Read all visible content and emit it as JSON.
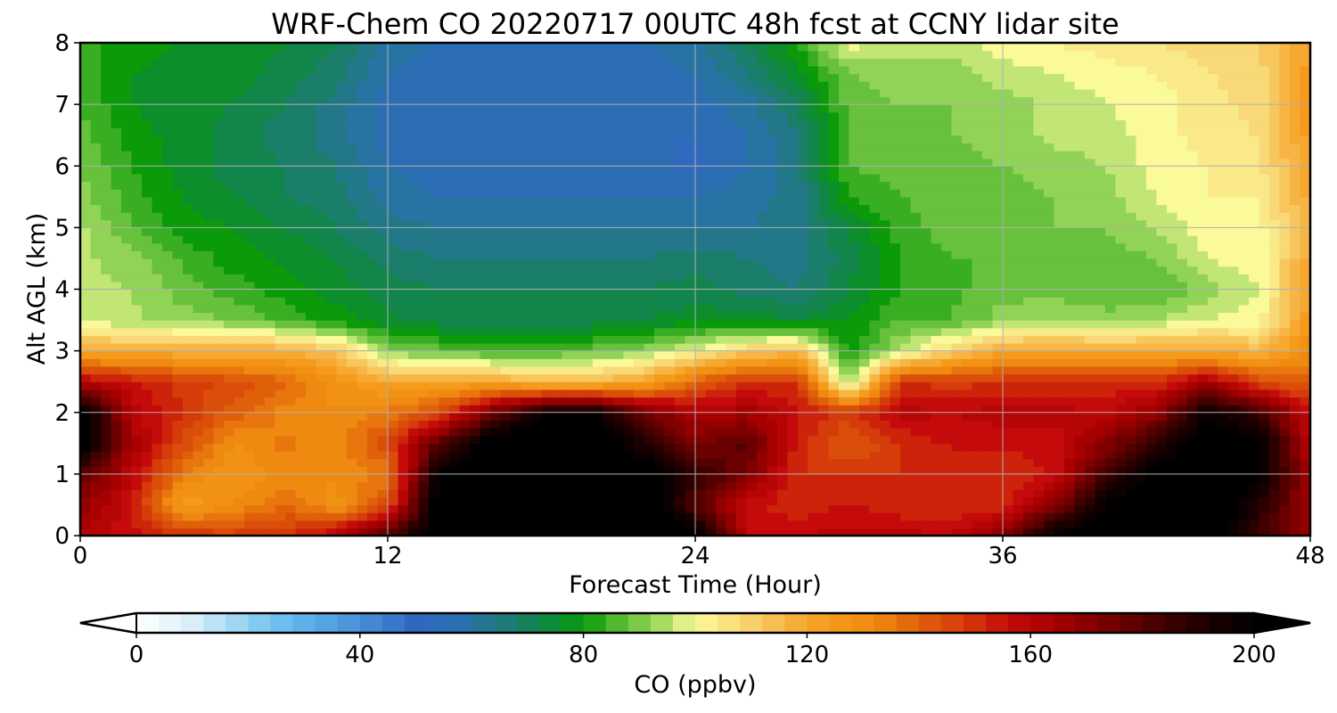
{
  "chart_data": {
    "type": "heatmap",
    "title": "WRF-Chem CO  20220717 00UTC 48h fcst at CCNY lidar site",
    "xlabel": "Forecast Time (Hour)",
    "ylabel": "Alt AGL (km)",
    "xlim": [
      0,
      48
    ],
    "ylim": [
      0,
      8
    ],
    "x_ticks": [
      "0",
      "12",
      "24",
      "36",
      "48"
    ],
    "y_ticks": [
      "0",
      "1",
      "2",
      "3",
      "4",
      "5",
      "6",
      "7",
      "8"
    ],
    "grid": true,
    "x": [
      0,
      2,
      4,
      6,
      8,
      10,
      12,
      14,
      16,
      18,
      20,
      22,
      24,
      26,
      28,
      30,
      32,
      34,
      36,
      38,
      40,
      42,
      44,
      46,
      48
    ],
    "y": [
      0,
      0.5,
      1,
      1.5,
      2,
      2.5,
      3,
      3.5,
      4,
      4.5,
      5,
      5.5,
      6,
      6.5,
      7,
      7.5,
      8
    ],
    "values": [
      [
        162,
        155,
        150,
        148,
        150,
        160,
        182,
        205,
        208,
        210,
        210,
        206,
        204,
        158,
        158,
        160,
        160,
        158,
        170,
        200,
        205,
        206,
        208,
        185,
        168
      ],
      [
        168,
        155,
        122,
        130,
        138,
        128,
        145,
        205,
        210,
        212,
        212,
        208,
        180,
        156,
        150,
        155,
        150,
        150,
        152,
        170,
        200,
        206,
        210,
        190,
        165
      ],
      [
        180,
        158,
        135,
        125,
        132,
        130,
        135,
        200,
        208,
        212,
        212,
        206,
        188,
        172,
        150,
        150,
        150,
        150,
        150,
        155,
        185,
        202,
        206,
        200,
        165
      ],
      [
        205,
        165,
        145,
        130,
        135,
        132,
        145,
        180,
        205,
        210,
        210,
        190,
        172,
        180,
        152,
        140,
        150,
        155,
        155,
        155,
        170,
        190,
        205,
        200,
        160
      ],
      [
        205,
        160,
        150,
        140,
        132,
        130,
        135,
        145,
        175,
        198,
        200,
        175,
        162,
        165,
        155,
        148,
        160,
        158,
        160,
        160,
        158,
        168,
        198,
        185,
        155
      ],
      [
        160,
        155,
        148,
        145,
        140,
        128,
        120,
        122,
        120,
        115,
        115,
        120,
        140,
        150,
        150,
        90,
        150,
        148,
        150,
        150,
        150,
        150,
        165,
        145,
        140
      ],
      [
        120,
        118,
        118,
        118,
        118,
        112,
        92,
        88,
        85,
        85,
        88,
        92,
        100,
        110,
        115,
        80,
        95,
        110,
        120,
        120,
        120,
        120,
        120,
        115,
        130
      ],
      [
        95,
        95,
        92,
        90,
        85,
        80,
        75,
        72,
        72,
        72,
        72,
        74,
        76,
        76,
        74,
        78,
        86,
        86,
        92,
        95,
        92,
        94,
        98,
        100,
        125
      ],
      [
        95,
        94,
        88,
        84,
        80,
        76,
        72,
        70,
        70,
        70,
        70,
        70,
        72,
        68,
        66,
        74,
        82,
        85,
        88,
        88,
        86,
        86,
        92,
        98,
        122
      ],
      [
        95,
        92,
        85,
        80,
        77,
        74,
        68,
        66,
        66,
        66,
        66,
        66,
        68,
        66,
        64,
        72,
        82,
        86,
        86,
        88,
        88,
        90,
        98,
        100,
        120
      ],
      [
        95,
        86,
        80,
        78,
        74,
        70,
        64,
        62,
        62,
        62,
        62,
        62,
        62,
        62,
        64,
        74,
        84,
        88,
        88,
        90,
        90,
        95,
        100,
        100,
        118
      ],
      [
        92,
        84,
        78,
        74,
        70,
        68,
        60,
        58,
        58,
        58,
        58,
        58,
        58,
        60,
        64,
        82,
        86,
        88,
        88,
        90,
        92,
        98,
        102,
        102,
        120
      ],
      [
        90,
        82,
        76,
        72,
        70,
        66,
        58,
        56,
        56,
        56,
        56,
        56,
        52,
        58,
        64,
        86,
        88,
        88,
        90,
        92,
        94,
        100,
        102,
        105,
        122
      ],
      [
        88,
        80,
        76,
        72,
        68,
        64,
        56,
        54,
        54,
        54,
        54,
        54,
        54,
        58,
        66,
        86,
        88,
        90,
        92,
        95,
        96,
        100,
        104,
        106,
        124
      ],
      [
        86,
        78,
        76,
        74,
        70,
        64,
        56,
        54,
        54,
        54,
        54,
        54,
        56,
        60,
        70,
        88,
        90,
        90,
        92,
        95,
        98,
        100,
        104,
        108,
        126
      ],
      [
        84,
        78,
        76,
        76,
        72,
        68,
        58,
        56,
        56,
        56,
        56,
        56,
        58,
        66,
        76,
        90,
        92,
        92,
        96,
        98,
        100,
        102,
        106,
        108,
        124
      ],
      [
        84,
        80,
        78,
        78,
        74,
        70,
        60,
        58,
        58,
        58,
        58,
        58,
        60,
        70,
        82,
        100,
        96,
        96,
        100,
        102,
        104,
        106,
        108,
        110,
        122
      ]
    ],
    "colorbar": {
      "label": "CO  (ppbv)",
      "min": 0,
      "max": 200,
      "ticks": [
        "0",
        "40",
        "80",
        "120",
        "160",
        "200"
      ],
      "extend": "both",
      "stops": [
        [
          0,
          "#ffffff"
        ],
        [
          10,
          "#d8eef9"
        ],
        [
          20,
          "#8fd0f2"
        ],
        [
          28,
          "#5fb8ec"
        ],
        [
          40,
          "#4a8fd8"
        ],
        [
          50,
          "#3068c0"
        ],
        [
          58,
          "#2a70b0"
        ],
        [
          66,
          "#1f7a7a"
        ],
        [
          74,
          "#0d8a3a"
        ],
        [
          80,
          "#0a9a0a"
        ],
        [
          86,
          "#52b830"
        ],
        [
          94,
          "#a6dc62"
        ],
        [
          100,
          "#fbfa9a"
        ],
        [
          108,
          "#f8d877"
        ],
        [
          116,
          "#f6b545"
        ],
        [
          124,
          "#f59a1a"
        ],
        [
          132,
          "#ef8a10"
        ],
        [
          140,
          "#e0600a"
        ],
        [
          148,
          "#d63c0a"
        ],
        [
          156,
          "#c40a0a"
        ],
        [
          164,
          "#a80000"
        ],
        [
          172,
          "#800000"
        ],
        [
          182,
          "#4a0000"
        ],
        [
          192,
          "#1a0000"
        ],
        [
          200,
          "#000000"
        ]
      ]
    }
  }
}
